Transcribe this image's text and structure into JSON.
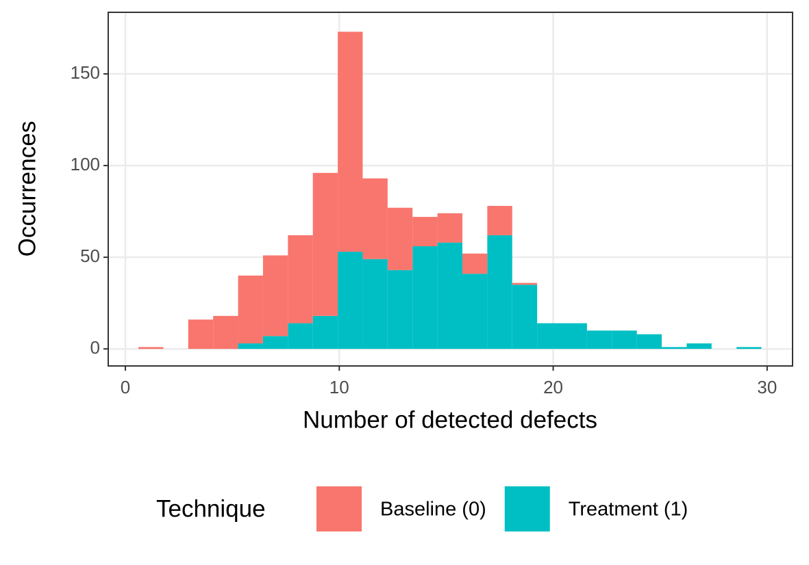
{
  "chart_data": {
    "type": "histogram",
    "xlabel": "Number of detected defects",
    "ylabel": "Occurrences",
    "bins": [
      0.61,
      1.775,
      2.94,
      4.105,
      5.27,
      6.435,
      7.6,
      8.765,
      9.93,
      11.095,
      12.26,
      13.425,
      14.59,
      15.755,
      16.92,
      18.085,
      19.25,
      20.415,
      21.58,
      22.745,
      23.91,
      25.075,
      26.24,
      27.405,
      28.57,
      29.735
    ],
    "series": [
      {
        "name": "Baseline (0)",
        "color": "#f8766d",
        "values": [
          1,
          0,
          16,
          18,
          37,
          44,
          48,
          78,
          120,
          44,
          34,
          16,
          16,
          11,
          16,
          1,
          0,
          0,
          0,
          0,
          0,
          0,
          0,
          0,
          0
        ]
      },
      {
        "name": "Treatment (1)",
        "color": "#00bfc4",
        "values": [
          0,
          0,
          0,
          0,
          3,
          7,
          14,
          18,
          53,
          49,
          43,
          56,
          58,
          41,
          62,
          35,
          14,
          14,
          10,
          10,
          8,
          1,
          3,
          0,
          1
        ]
      }
    ],
    "stacked": true,
    "xlim": [
      -0.8,
      31.19
    ],
    "ylim": [
      -9.3,
      183.6
    ],
    "xticks": [
      0,
      10,
      20,
      30
    ],
    "yticks": [
      0,
      50,
      100,
      150
    ],
    "grid": true,
    "legend_title": "Technique",
    "legend_position": "bottom"
  }
}
